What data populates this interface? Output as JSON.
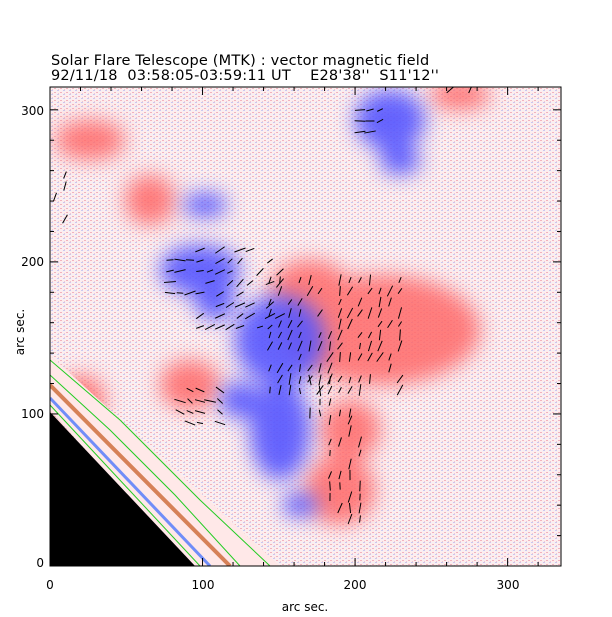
{
  "title": {
    "line1": "Solar Flare Telescope (MTK) : vector magnetic field",
    "line2": "92/11/18  03:58:05-03:59:11 UT    E28'38''  S11'12''"
  },
  "axes": {
    "xlabel": "arc sec.",
    "ylabel": "arc sec.",
    "x_ticks": [
      "0",
      "100",
      "200",
      "300"
    ],
    "y_ticks": [
      "0",
      "100",
      "200",
      "300"
    ],
    "x_range": [
      0,
      335
    ],
    "y_range": [
      0,
      315
    ]
  },
  "colors": {
    "positive_polarity": "#ff3b3b",
    "negative_polarity": "#3b3bff",
    "limb_contour": "#22cc22",
    "off_disk": "#000000",
    "vector": "#000000"
  }
}
